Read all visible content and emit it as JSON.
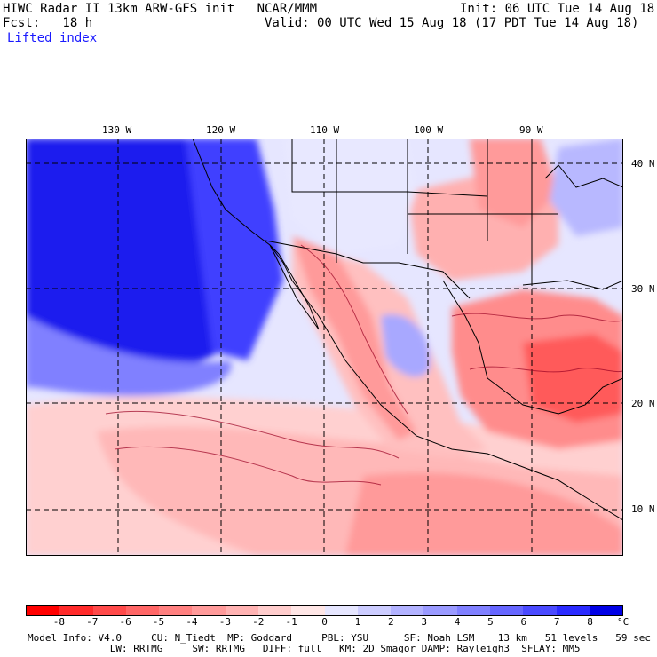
{
  "header": {
    "line1_left": "HIWC Radar II 13km ARW-GFS init   NCAR/MMM",
    "line1_right": "Init: 06 UTC Tue 14 Aug 18",
    "line2_left": "Fcst:   18 h",
    "line2_right": "Valid: 00 UTC Wed 15 Aug 18 (17 PDT Tue 14 Aug 18)",
    "line3": "Lifted index"
  },
  "map": {
    "longitude_labels": [
      "130 W",
      "120 W",
      "110 W",
      "100 W",
      "90 W"
    ],
    "latitude_labels": [
      "40 N",
      "30 N",
      "20 N",
      "10 N"
    ]
  },
  "colorbar": {
    "tick_labels": [
      "-8",
      "-7",
      "-6",
      "-5",
      "-4",
      "-3",
      "-2",
      "-1",
      "0",
      "1",
      "2",
      "3",
      "4",
      "5",
      "6",
      "7",
      "8"
    ],
    "unit": "°C",
    "colors": [
      "#ff0000",
      "#ff2a2a",
      "#ff4a4a",
      "#ff6666",
      "#ff8080",
      "#ff9a9a",
      "#ffb2b2",
      "#ffcccc",
      "#ffe6e6",
      "#e6e6ff",
      "#ccccff",
      "#b2b2ff",
      "#9a9aff",
      "#8080ff",
      "#6666ff",
      "#4a4aff",
      "#2a2aff",
      "#0000e6"
    ]
  },
  "footer": {
    "line1": "Model Info: V4.0     CU: N_Tiedt  MP: Goddard     PBL: YSU      SF: Noah LSM    13 km   51 levels   59 sec",
    "line2": "              LW: RRTMG     SW: RRTMG   DIFF: full   KM: 2D Smagor DAMP: Rayleigh3  SFLAY: MM5"
  }
}
